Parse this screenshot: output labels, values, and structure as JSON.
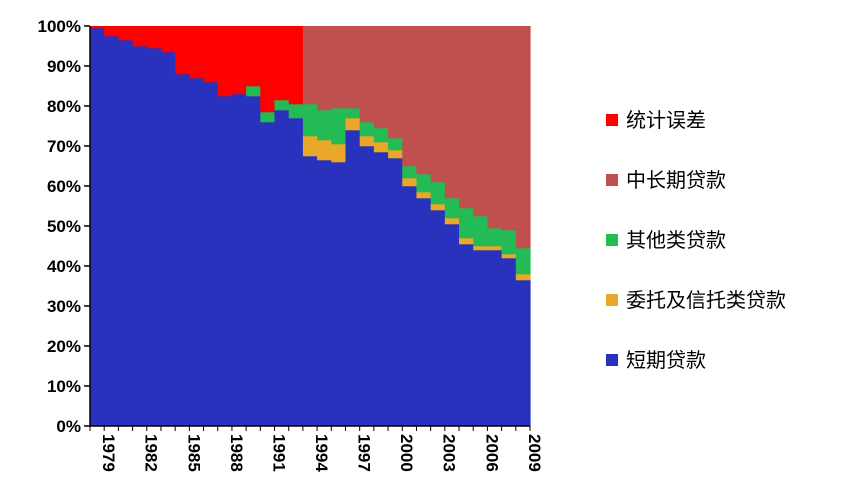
{
  "chart_data": {
    "type": "bar",
    "stacked": true,
    "percent_stacked": true,
    "years": [
      1979,
      1980,
      1981,
      1982,
      1983,
      1984,
      1985,
      1986,
      1987,
      1988,
      1989,
      1990,
      1991,
      1992,
      1993,
      1994,
      1995,
      1996,
      1997,
      1998,
      1999,
      2000,
      2001,
      2002,
      2003,
      2004,
      2005,
      2006,
      2007,
      2008,
      2009
    ],
    "x_tick_labels": [
      "1979",
      "1982",
      "1985",
      "1988",
      "1991",
      "1994",
      "1997",
      "2000",
      "2003",
      "2006",
      "2009"
    ],
    "y_tick_labels": [
      "0%",
      "10%",
      "20%",
      "30%",
      "40%",
      "50%",
      "60%",
      "70%",
      "80%",
      "90%",
      "100%"
    ],
    "ylim": [
      0,
      100
    ],
    "grid": false,
    "legend_position": "right",
    "stack_order": [
      "short",
      "trust",
      "other",
      "longmid",
      "error"
    ],
    "series": [
      {
        "key": "short",
        "name": "短期贷款",
        "color": "#2832BC",
        "values": [
          99.5,
          97.5,
          96.5,
          95,
          94.5,
          93.5,
          88,
          87,
          86,
          82.5,
          83,
          82.5,
          76,
          79,
          77,
          67.5,
          66.5,
          66,
          74,
          70,
          68.5,
          67,
          60,
          57,
          54,
          50.5,
          45.5,
          44,
          44,
          42,
          36.5
        ]
      },
      {
        "key": "trust",
        "name": "委托及信托类贷款",
        "color": "#EAA828",
        "values": [
          0,
          0,
          0,
          0,
          0,
          0,
          0,
          0,
          0,
          0,
          0,
          0,
          0,
          0,
          0,
          5,
          5,
          4.5,
          3,
          2.5,
          2.5,
          2,
          2,
          1.5,
          1.5,
          1.5,
          1.5,
          1,
          1,
          1,
          1.5
        ]
      },
      {
        "key": "other",
        "name": "其他类贷款",
        "color": "#22BB55",
        "values": [
          0,
          0,
          0,
          0,
          0,
          0,
          0,
          0,
          0,
          0,
          0,
          2.5,
          2.5,
          2.5,
          3.5,
          8,
          7.5,
          9,
          2.5,
          3.5,
          3.5,
          3,
          3,
          4.5,
          5.5,
          5,
          7.5,
          7.5,
          4.5,
          6,
          6.5
        ]
      },
      {
        "key": "longmid",
        "name": "中长期贷款",
        "color": "#C0504D",
        "values": [
          0,
          0,
          0,
          0,
          0,
          0,
          0,
          0,
          0,
          0,
          0,
          0,
          0,
          0,
          0,
          19.5,
          21,
          20.5,
          20.5,
          24,
          25.5,
          28,
          35,
          37,
          39,
          43,
          45.5,
          47.5,
          50.5,
          51,
          55.5
        ]
      },
      {
        "key": "error",
        "name": "统计误差",
        "color": "#FF0000",
        "values": [
          0.5,
          2.5,
          3.5,
          5,
          5.5,
          6.5,
          12,
          13,
          14,
          17.5,
          17,
          15,
          21.5,
          18.5,
          19.5,
          0,
          0,
          0,
          0,
          0,
          0,
          0,
          0,
          0,
          0,
          0,
          0,
          0,
          0,
          0,
          0
        ]
      }
    ],
    "legend": [
      "统计误差",
      "中长期贷款",
      "其他类贷款",
      "委托及信托类贷款",
      "短期贷款"
    ]
  }
}
